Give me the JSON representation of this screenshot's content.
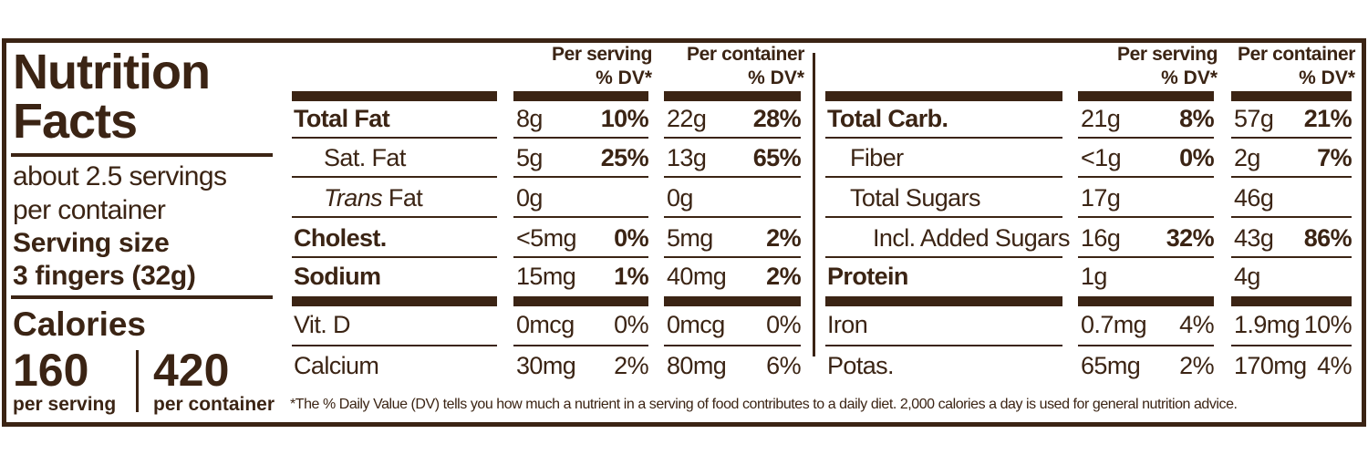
{
  "title": "Nutrition Facts",
  "servings_per_container": "about 2.5 servings per container",
  "serving_size_label": "Serving size",
  "serving_size": "3 fingers (32g)",
  "calories": {
    "label": "Calories",
    "per_serving": {
      "amount": "160",
      "label": "per serving"
    },
    "per_container": {
      "amount": "420",
      "label": "per container"
    }
  },
  "column_headers": {
    "per_serving": "Per serving",
    "per_container": "Per container",
    "dv": "% DV*"
  },
  "tables": [
    {
      "nutrients": [
        {
          "name": "Total Fat",
          "bold": true,
          "indent": 0,
          "serving_amount": "8g",
          "serving_dv": "10%",
          "container_amount": "22g",
          "container_dv": "28%"
        },
        {
          "name": "Sat. Fat",
          "indent": 1,
          "serving_amount": "5g",
          "serving_dv": "25%",
          "container_amount": "13g",
          "container_dv": "65%"
        },
        {
          "italic_prefix": "Trans",
          "name": "Fat",
          "indent": 1,
          "serving_amount": "0g",
          "container_amount": "0g"
        },
        {
          "name": "Cholest.",
          "bold": true,
          "indent": 0,
          "serving_amount": "<5mg",
          "serving_dv": "0%",
          "container_amount": "5mg",
          "container_dv": "2%"
        },
        {
          "name": "Sodium",
          "bold": true,
          "indent": 0,
          "serving_amount": "15mg",
          "serving_dv": "1%",
          "container_amount": "40mg",
          "container_dv": "2%"
        }
      ],
      "minerals": [
        {
          "name": "Vit. D",
          "indent": 0,
          "serving_amount": "0mcg",
          "serving_dv": "0%",
          "container_amount": "0mcg",
          "container_dv": "0%"
        },
        {
          "name": "Calcium",
          "indent": 0,
          "serving_amount": "30mg",
          "serving_dv": "2%",
          "container_amount": "80mg",
          "container_dv": "6%"
        }
      ]
    },
    {
      "nutrients": [
        {
          "name": "Total Carb.",
          "bold": true,
          "indent": 0,
          "serving_amount": "21g",
          "serving_dv": "8%",
          "container_amount": "57g",
          "container_dv": "21%"
        },
        {
          "name": "Fiber",
          "indent": 1,
          "serving_amount": "<1g",
          "serving_dv": "0%",
          "container_amount": "2g",
          "container_dv": "7%"
        },
        {
          "name": "Total Sugars",
          "indent": 1,
          "serving_amount": "17g",
          "container_amount": "46g"
        },
        {
          "name": "Incl. Added Sugars",
          "indent": 2,
          "serving_amount": "16g",
          "serving_dv": "32%",
          "container_amount": "43g",
          "container_dv": "86%"
        },
        {
          "name": "Protein",
          "bold": true,
          "indent": 0,
          "serving_amount": "1g",
          "container_amount": "4g"
        }
      ],
      "minerals": [
        {
          "name": "Iron",
          "indent": 0,
          "serving_amount": "0.7mg",
          "serving_dv": "4%",
          "container_amount": "1.9mg",
          "container_dv": "10%"
        },
        {
          "name": "Potas.",
          "indent": 0,
          "serving_amount": "65mg",
          "serving_dv": "2%",
          "container_amount": "170mg",
          "container_dv": "4%"
        }
      ]
    }
  ],
  "footnote": "*The % Daily Value (DV) tells you how much a nutrient in a serving of food contributes to a daily diet. 2,000 calories a day is used for general nutrition advice."
}
